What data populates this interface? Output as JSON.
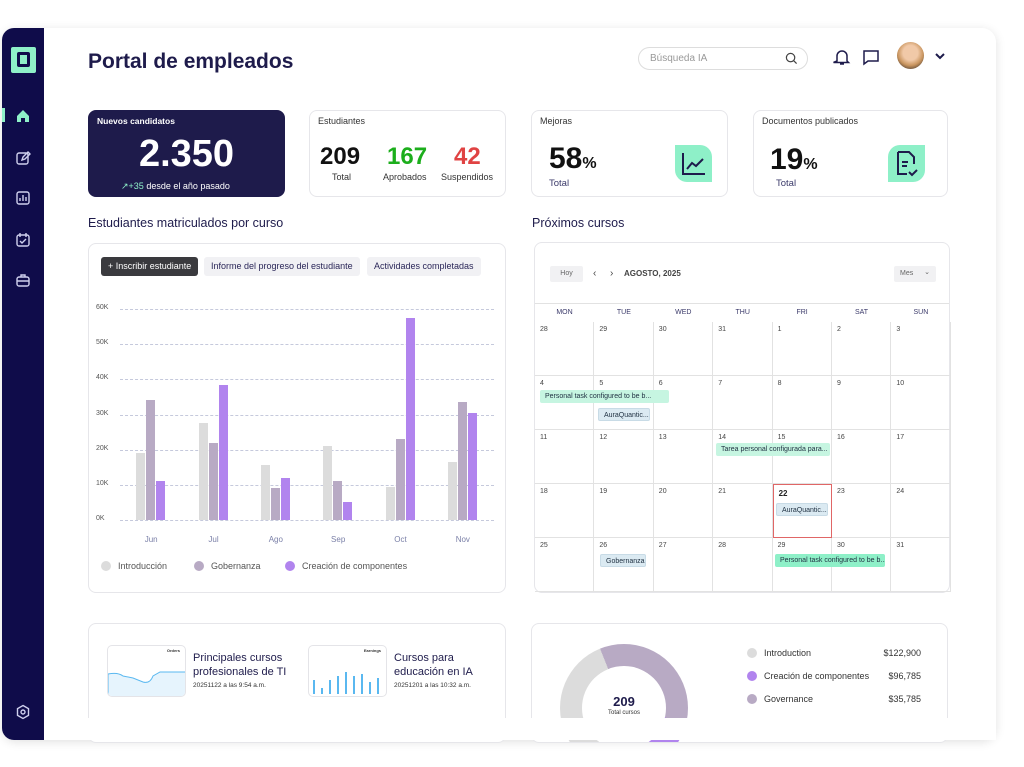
{
  "header": {
    "title": "Portal de empleados",
    "search_placeholder": "Búsqueda IA"
  },
  "sidebar": {
    "items": [
      "home",
      "edit",
      "reports",
      "calendar",
      "briefcase"
    ],
    "active": "home",
    "bottom": "settings"
  },
  "stats": {
    "new_candidates": {
      "label": "Nuevos candidatos",
      "value": "2.350",
      "delta": "+35",
      "delta_text": "desde el año pasado"
    },
    "students": {
      "label": "Estudiantes",
      "total": "209",
      "total_label": "Total",
      "approved": "167",
      "approved_label": "Aprobados",
      "failed": "42",
      "failed_label": "Suspendidos"
    },
    "improvements": {
      "label": "Mejoras",
      "value": "58",
      "unit": "%",
      "sub": "Total"
    },
    "documents": {
      "label": "Documentos publicados",
      "value": "19",
      "unit": "%",
      "sub": "Total"
    }
  },
  "enrolled": {
    "title": "Estudiantes matriculados por curso",
    "buttons": [
      "+ Inscribir estudiante",
      "Informe del progreso del estudiante",
      "Actividades completadas"
    ]
  },
  "chart_data": {
    "type": "bar",
    "categories": [
      "Jun",
      "Jul",
      "Ago",
      "Sep",
      "Oct",
      "Nov"
    ],
    "series": [
      {
        "name": "Introducción",
        "color": "#dcdcdc",
        "values": [
          19000,
          27500,
          15500,
          21000,
          9500,
          16500
        ]
      },
      {
        "name": "Gobernanza",
        "color": "#b8aac4",
        "values": [
          34000,
          21800,
          9000,
          11000,
          23000,
          33500
        ]
      },
      {
        "name": "Creación de componentes",
        "color": "#b184ee",
        "values": [
          11000,
          38500,
          12000,
          5000,
          57500,
          30500
        ]
      }
    ],
    "yticks": [
      "0K",
      "10K",
      "20K",
      "30K",
      "40K",
      "50K",
      "60K"
    ],
    "ylim": [
      0,
      60000
    ],
    "grid": true,
    "legend": "bottom"
  },
  "upcoming": {
    "title": "Próximos cursos",
    "today": "Hoy",
    "month": "AGOSTO, 2025",
    "view": "Mes",
    "dow": [
      "MON",
      "TUE",
      "WED",
      "THU",
      "FRI",
      "SAT",
      "SUN"
    ],
    "days": [
      "28",
      "29",
      "30",
      "31",
      "1",
      "2",
      "3",
      "4",
      "5",
      "6",
      "7",
      "8",
      "9",
      "10",
      "11",
      "12",
      "13",
      "14",
      "15",
      "16",
      "17",
      "18",
      "19",
      "20",
      "21",
      "22",
      "23",
      "24",
      "25",
      "26",
      "27",
      "28",
      "29",
      "30",
      "31"
    ],
    "events": [
      "Personal task configured to be b...",
      "AuraQuantic...",
      "Tarea personal configurada para...",
      "AuraQuantic...",
      "Gobernanza",
      "Personal task configured to be b..."
    ]
  },
  "courses": [
    {
      "title": "Principales cursos profesionales de TI",
      "date": "20251122 a las 9:54 a.m.",
      "thumb": "Orders"
    },
    {
      "title": "Cursos para educación en IA",
      "date": "20251201 a las 10:32 a.m.",
      "thumb": "Earnings"
    }
  ],
  "donut": {
    "total": "209",
    "total_label": "Total cursos",
    "items": [
      {
        "label": "Introduction",
        "value": "$122,900",
        "color": "#dcdcdc"
      },
      {
        "label": "Creación de componentes",
        "value": "$96,785",
        "color": "#b184ee"
      },
      {
        "label": "Governance",
        "value": "$35,785",
        "color": "#b8aac4"
      }
    ]
  }
}
